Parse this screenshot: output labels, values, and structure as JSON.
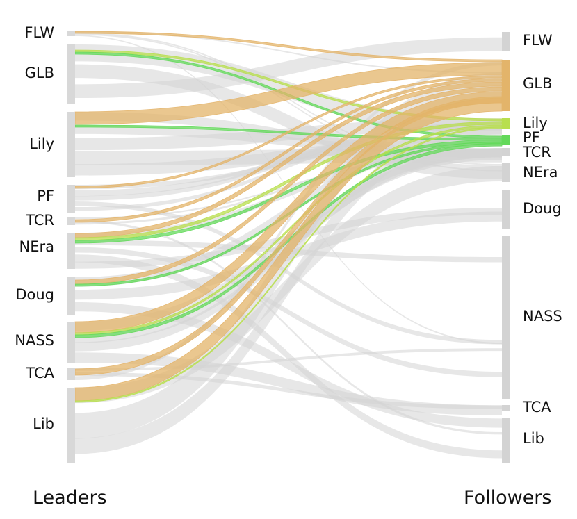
{
  "diagram": {
    "type": "sankey",
    "left_title": "Leaders",
    "right_title": "Followers",
    "leaders": [
      "FLW",
      "GLB",
      "Lily",
      "PF",
      "TCR",
      "NEra",
      "Doug",
      "NASS",
      "TCA",
      "Lib"
    ],
    "followers": [
      "FLW",
      "GLB",
      "Lily",
      "PF",
      "TCR",
      "NEra",
      "Doug",
      "NASS",
      "TCA",
      "Lib"
    ],
    "colors": {
      "neutral": "#d3d3d3",
      "to_GLB": "#e3b46a",
      "to_Lily": "#b8df4e",
      "to_PF": "#63d95a"
    }
  }
}
